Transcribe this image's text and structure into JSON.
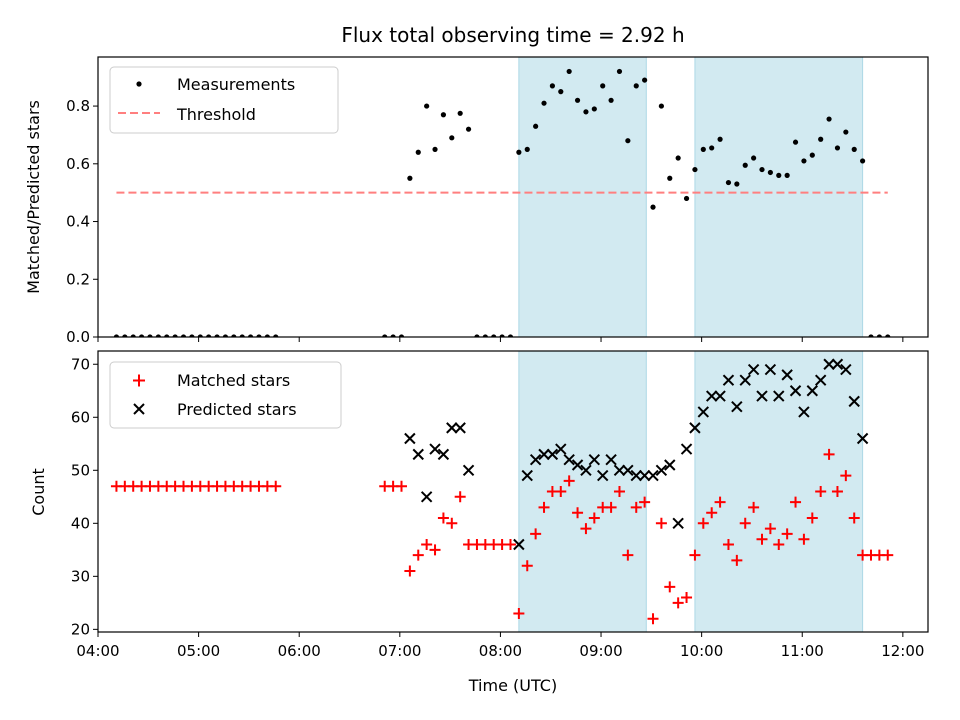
{
  "chart_data": [
    {
      "type": "scatter",
      "title": "Flux total observing time = 2.92 h",
      "xlabel": "",
      "ylabel": "Matched/Predicted stars",
      "xlim": [
        "04:00",
        "12:15"
      ],
      "ylim": [
        0,
        0.97
      ],
      "yticks": [
        "0.0",
        "0.2",
        "0.4",
        "0.6",
        "0.8"
      ],
      "legend": "top-left",
      "shaded_intervals": [
        [
          "08:11",
          "09:27"
        ],
        [
          "09:56",
          "11:36"
        ]
      ],
      "shade_color": "#add8e6",
      "series": [
        {
          "name": "Measurements",
          "marker": "dot",
          "color": "#000000",
          "x": [
            "04:11",
            "04:16",
            "04:21",
            "04:26",
            "04:31",
            "04:36",
            "04:41",
            "04:46",
            "04:51",
            "04:56",
            "05:01",
            "05:06",
            "05:11",
            "05:16",
            "05:21",
            "05:26",
            "05:31",
            "05:36",
            "05:41",
            "05:46",
            "06:51",
            "06:56",
            "07:01",
            "07:06",
            "07:11",
            "07:16",
            "07:21",
            "07:26",
            "07:31",
            "07:36",
            "07:41",
            "07:46",
            "07:51",
            "07:56",
            "08:01",
            "08:06",
            "08:11",
            "08:16",
            "08:21",
            "08:26",
            "08:31",
            "08:36",
            "08:41",
            "08:46",
            "08:51",
            "08:56",
            "09:01",
            "09:06",
            "09:11",
            "09:16",
            "09:21",
            "09:26",
            "09:31",
            "09:36",
            "09:41",
            "09:46",
            "09:51",
            "09:56",
            "10:01",
            "10:06",
            "10:11",
            "10:16",
            "10:21",
            "10:26",
            "10:31",
            "10:36",
            "10:41",
            "10:46",
            "10:51",
            "10:56",
            "11:01",
            "11:06",
            "11:11",
            "11:16",
            "11:21",
            "11:26",
            "11:31",
            "11:36",
            "11:41",
            "11:46",
            "11:51"
          ],
          "y": [
            0,
            0,
            0,
            0,
            0,
            0,
            0,
            0,
            0,
            0,
            0,
            0,
            0,
            0,
            0,
            0,
            0,
            0,
            0,
            0,
            0,
            0,
            0,
            0.55,
            0.64,
            0.8,
            0.65,
            0.77,
            0.69,
            0.775,
            0.72,
            0,
            0,
            0,
            0,
            0,
            0.64,
            0.65,
            0.73,
            0.81,
            0.87,
            0.85,
            0.92,
            0.82,
            0.78,
            0.79,
            0.87,
            0.82,
            0.92,
            0.68,
            0.87,
            0.89,
            0.45,
            0.8,
            0.55,
            0.62,
            0.48,
            0.58,
            0.65,
            0.655,
            0.685,
            0.535,
            0.53,
            0.595,
            0.62,
            0.58,
            0.57,
            0.56,
            0.56,
            0.675,
            0.61,
            0.63,
            0.685,
            0.755,
            0.655,
            0.71,
            0.65,
            0.61,
            0,
            0,
            0
          ]
        },
        {
          "name": "Threshold",
          "line": "dashed",
          "color": "#ff7f7f",
          "x": [
            "04:11",
            "11:51"
          ],
          "y": [
            0.5,
            0.5
          ]
        }
      ]
    },
    {
      "type": "scatter",
      "title": "",
      "xlabel": "Time (UTC)",
      "ylabel": "Count",
      "xlim": [
        "04:00",
        "12:15"
      ],
      "xticks": [
        "04:00",
        "05:00",
        "06:00",
        "07:00",
        "08:00",
        "09:00",
        "10:00",
        "11:00",
        "12:00"
      ],
      "ylim": [
        19.5,
        72.5
      ],
      "yticks": [
        "20",
        "30",
        "40",
        "50",
        "60",
        "70"
      ],
      "legend": "top-left",
      "shaded_intervals": [
        [
          "08:11",
          "09:27"
        ],
        [
          "09:56",
          "11:36"
        ]
      ],
      "shade_color": "#add8e6",
      "series": [
        {
          "name": "Matched stars",
          "marker": "plus",
          "color": "#ff0000",
          "x": [
            "04:11",
            "04:16",
            "04:21",
            "04:26",
            "04:31",
            "04:36",
            "04:41",
            "04:46",
            "04:51",
            "04:56",
            "05:01",
            "05:06",
            "05:11",
            "05:16",
            "05:21",
            "05:26",
            "05:31",
            "05:36",
            "05:41",
            "05:46",
            "06:51",
            "06:56",
            "07:01",
            "07:06",
            "07:11",
            "07:16",
            "07:21",
            "07:26",
            "07:31",
            "07:36",
            "07:41",
            "07:46",
            "07:51",
            "07:56",
            "08:01",
            "08:06",
            "08:11",
            "08:16",
            "08:21",
            "08:26",
            "08:31",
            "08:36",
            "08:41",
            "08:46",
            "08:51",
            "08:56",
            "09:01",
            "09:06",
            "09:11",
            "09:16",
            "09:21",
            "09:26",
            "09:31",
            "09:36",
            "09:41",
            "09:46",
            "09:51",
            "09:56",
            "10:01",
            "10:06",
            "10:11",
            "10:16",
            "10:21",
            "10:26",
            "10:31",
            "10:36",
            "10:41",
            "10:46",
            "10:51",
            "10:56",
            "11:01",
            "11:06",
            "11:11",
            "11:16",
            "11:21",
            "11:26",
            "11:31",
            "11:36",
            "11:41",
            "11:46",
            "11:51"
          ],
          "y": [
            47,
            47,
            47,
            47,
            47,
            47,
            47,
            47,
            47,
            47,
            47,
            47,
            47,
            47,
            47,
            47,
            47,
            47,
            47,
            47,
            47,
            47,
            47,
            31,
            34,
            36,
            35,
            41,
            40,
            45,
            36,
            36,
            36,
            36,
            36,
            36,
            23,
            32,
            38,
            43,
            46,
            46,
            48,
            42,
            39,
            41,
            43,
            43,
            46,
            34,
            43,
            44,
            22,
            40,
            28,
            25,
            26,
            34,
            40,
            42,
            44,
            36,
            33,
            40,
            43,
            37,
            39,
            36,
            38,
            44,
            37,
            41,
            46,
            53,
            46,
            49,
            41,
            34,
            34,
            34,
            34
          ]
        },
        {
          "name": "Predicted stars",
          "marker": "x",
          "color": "#000000",
          "x": [
            "07:06",
            "07:11",
            "07:16",
            "07:21",
            "07:26",
            "07:31",
            "07:36",
            "07:41",
            "08:11",
            "08:16",
            "08:21",
            "08:26",
            "08:31",
            "08:36",
            "08:41",
            "08:46",
            "08:51",
            "08:56",
            "09:01",
            "09:06",
            "09:11",
            "09:16",
            "09:21",
            "09:26",
            "09:31",
            "09:36",
            "09:41",
            "09:46",
            "09:51",
            "09:56",
            "10:01",
            "10:06",
            "10:11",
            "10:16",
            "10:21",
            "10:26",
            "10:31",
            "10:36",
            "10:41",
            "10:46",
            "10:51",
            "10:56",
            "11:01",
            "11:06",
            "11:11",
            "11:16",
            "11:21",
            "11:26",
            "11:31",
            "11:36"
          ],
          "y": [
            56,
            53,
            45,
            54,
            53,
            58,
            58,
            50,
            36,
            49,
            52,
            53,
            53,
            54,
            52,
            51,
            50,
            52,
            49,
            52,
            50,
            50,
            49,
            49,
            49,
            50,
            51,
            40,
            54,
            58,
            61,
            64,
            64,
            67,
            62,
            67,
            69,
            64,
            69,
            64,
            68,
            65,
            61,
            65,
            67,
            70,
            70,
            69,
            63,
            56
          ]
        }
      ]
    }
  ]
}
